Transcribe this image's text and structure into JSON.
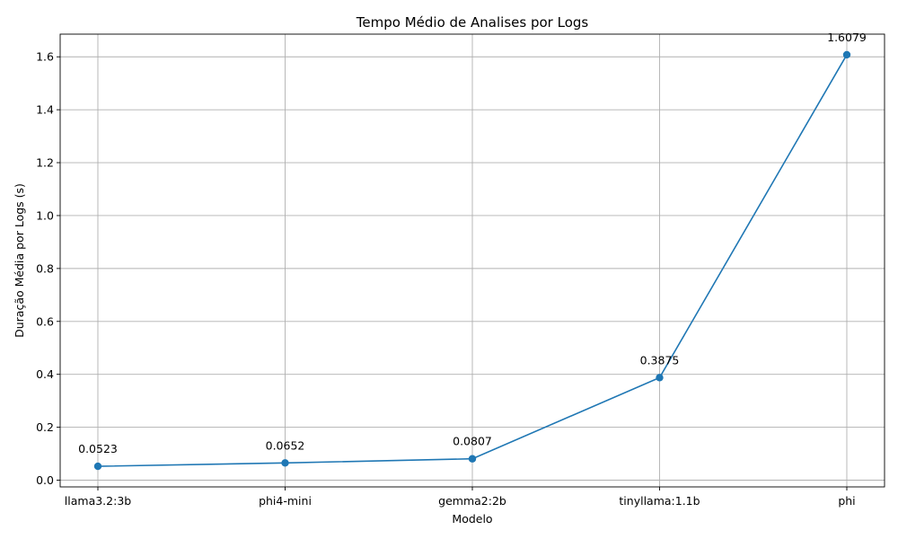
{
  "chart_data": {
    "type": "line",
    "title": "Tempo Médio de Analises por Logs",
    "xlabel": "Modelo",
    "ylabel": "Duração Média por Logs (s)",
    "categories": [
      "llama3.2:3b",
      "phi4-mini",
      "gemma2:2b",
      "tinyllama:1.1b",
      "phi"
    ],
    "values": [
      0.0523,
      0.0652,
      0.0807,
      0.3875,
      1.6079
    ],
    "data_labels": [
      "0.0523",
      "0.0652",
      "0.0807",
      "0.3875",
      "1.6079"
    ],
    "yticks": [
      0.0,
      0.2,
      0.4,
      0.6,
      0.8,
      1.0,
      1.2,
      1.4,
      1.6
    ],
    "ytick_labels": [
      "0.0",
      "0.2",
      "0.4",
      "0.6",
      "0.8",
      "1.0",
      "1.2",
      "1.4",
      "1.6"
    ],
    "ylim": [
      -0.0255,
      1.6857
    ],
    "grid": true,
    "line_color": "#1f77b4",
    "marker": "circle"
  }
}
